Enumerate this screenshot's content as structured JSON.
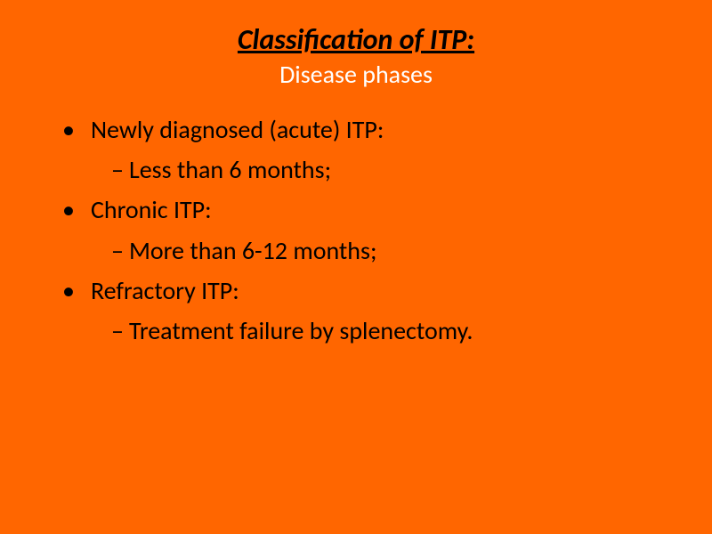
{
  "background_color": "#ff6600",
  "title": {
    "text": "Classification of ITP:",
    "color": "#000000",
    "fontsize": 32,
    "bold": true,
    "italic": true,
    "underline": true
  },
  "subtitle": {
    "text": "Disease phases",
    "color": "#ffffff",
    "fontsize": 28
  },
  "content": {
    "items": [
      {
        "level": 1,
        "marker": "•",
        "text": "Newly diagnosed (acute) ITP:"
      },
      {
        "level": 2,
        "marker": "–",
        "text": "Less than 6 months;"
      },
      {
        "level": 1,
        "marker": "•",
        "text": "Chronic ITP:"
      },
      {
        "level": 2,
        "marker": "–",
        "text": "More than 6-12 months;"
      },
      {
        "level": 1,
        "marker": "•",
        "text": "Refractory ITP:"
      },
      {
        "level": 2,
        "marker": "–",
        "text": "Treatment failure by splenectomy."
      }
    ],
    "text_color": "#000000",
    "fontsize": 28
  }
}
